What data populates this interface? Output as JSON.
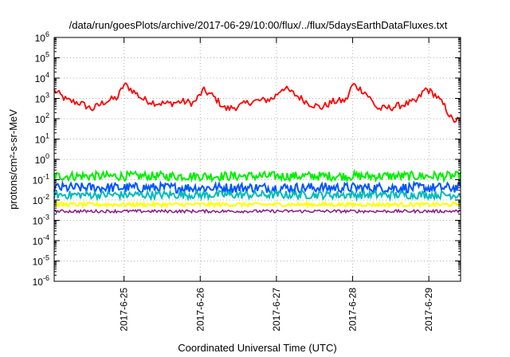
{
  "chart_data": {
    "type": "line",
    "title": "/data/run/goesPlots/archive/2017-06-29/10:00/flux/../flux/5daysEarthDataFluxes.txt",
    "xlabel": "Coordinated Universal Time (UTC)",
    "ylabel": "protons/cm²-s-sr-MeV",
    "y_scale": "log",
    "ylim_exponents": [
      -6,
      6
    ],
    "y_ticks": [
      {
        "base": "10",
        "exp": "6"
      },
      {
        "base": "10",
        "exp": "5"
      },
      {
        "base": "10",
        "exp": "4"
      },
      {
        "base": "10",
        "exp": "3"
      },
      {
        "base": "10",
        "exp": "2"
      },
      {
        "base": "10",
        "exp": "1"
      },
      {
        "base": "10",
        "exp": "0"
      },
      {
        "base": "10",
        "exp": "-1"
      },
      {
        "base": "10",
        "exp": "-2"
      },
      {
        "base": "10",
        "exp": "-3"
      },
      {
        "base": "10",
        "exp": "-4"
      },
      {
        "base": "10",
        "exp": "-5"
      },
      {
        "base": "10",
        "exp": "-6"
      }
    ],
    "x_range_days": [
      "2017-06-24 02:00",
      "2017-06-29 10:00"
    ],
    "x_ticks": [
      "2017-6-25",
      "2017-6-26",
      "2017-6-27",
      "2017-6-28",
      "2017-6-29"
    ],
    "grid": true,
    "series": [
      {
        "color": "#ff0000",
        "x": [
          "2017-06-24 02:00",
          "2017-06-24 06:00",
          "2017-06-24 10:00",
          "2017-06-24 14:00",
          "2017-06-24 18:00",
          "2017-06-24 22:00",
          "2017-06-25 00:00",
          "2017-06-25 02:00",
          "2017-06-25 06:00",
          "2017-06-25 10:00",
          "2017-06-25 14:00",
          "2017-06-25 18:00",
          "2017-06-25 22:00",
          "2017-06-26 01:00",
          "2017-06-26 04:00",
          "2017-06-26 08:00",
          "2017-06-26 12:00",
          "2017-06-26 16:00",
          "2017-06-26 20:00",
          "2017-06-26 23:00",
          "2017-06-27 02:00",
          "2017-06-27 06:00",
          "2017-06-27 10:00",
          "2017-06-27 14:00",
          "2017-06-27 18:00",
          "2017-06-27 22:00",
          "2017-06-28 00:00",
          "2017-06-28 04:00",
          "2017-06-28 08:00",
          "2017-06-28 12:00",
          "2017-06-28 16:00",
          "2017-06-28 20:00",
          "2017-06-28 23:00",
          "2017-06-29 02:00",
          "2017-06-29 05:00",
          "2017-06-29 07:30",
          "2017-06-29 10:00"
        ],
        "y": [
          2500,
          800,
          600,
          300,
          700,
          1100,
          5000,
          3000,
          900,
          600,
          550,
          700,
          600,
          2500,
          1300,
          300,
          400,
          700,
          800,
          1000,
          3500,
          1500,
          600,
          350,
          700,
          800,
          5000,
          2000,
          300,
          350,
          500,
          700,
          3000,
          1500,
          400,
          80,
          90
        ]
      },
      {
        "color": "#00ee00",
        "x": [
          "2017-06-24 02:00",
          "2017-06-29 10:00"
        ],
        "y": [
          0.15,
          0.15
        ]
      },
      {
        "color": "#0055ff",
        "x": [
          "2017-06-24 02:00",
          "2017-06-29 10:00"
        ],
        "y": [
          0.04,
          0.04
        ]
      },
      {
        "color": "#00bbbb",
        "x": [
          "2017-06-24 02:00",
          "2017-06-29 10:00"
        ],
        "y": [
          0.018,
          0.018
        ]
      },
      {
        "color": "#ffff00",
        "x": [
          "2017-06-24 02:00",
          "2017-06-29 10:00"
        ],
        "y": [
          0.006,
          0.006
        ]
      },
      {
        "color": "#8b1a89",
        "x": [
          "2017-06-24 02:00",
          "2017-06-29 10:00"
        ],
        "y": [
          0.0028,
          0.0028
        ]
      }
    ]
  }
}
